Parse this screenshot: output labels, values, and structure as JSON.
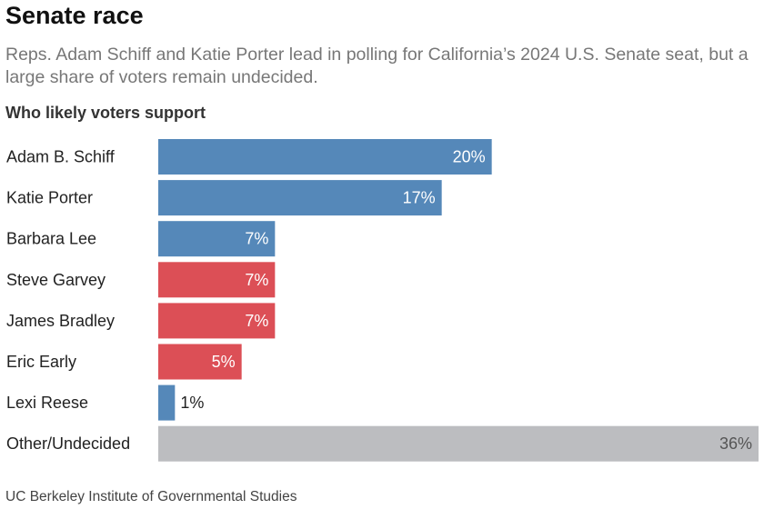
{
  "header": {
    "title": "Senate race",
    "subtitle": "Reps. Adam Schiff and Katie Porter lead in polling for California’s 2024 U.S. Senate seat, but a large share of voters remain undecided."
  },
  "source": "UC Berkeley Institute of Governmental Studies",
  "chart_data": {
    "type": "bar",
    "orientation": "horizontal",
    "title": "Who likely voters support",
    "categories": [
      "Adam B. Schiff",
      "Katie Porter",
      "Barbara Lee",
      "Steve Garvey",
      "James Bradley",
      "Eric Early",
      "Lexi Reese",
      "Other/Undecided"
    ],
    "values": [
      20,
      17,
      7,
      7,
      7,
      5,
      1,
      36
    ],
    "data_labels": [
      "20%",
      "17%",
      "7%",
      "7%",
      "7%",
      "5%",
      "1%",
      "36%"
    ],
    "party": [
      "D",
      "D",
      "D",
      "R",
      "R",
      "R",
      "D",
      "none"
    ],
    "colors": {
      "D": "#5588b9",
      "R": "#dc4f56",
      "none": "#bcbdc0"
    },
    "xlim": [
      0,
      36
    ],
    "grid": false,
    "legend": "none"
  }
}
